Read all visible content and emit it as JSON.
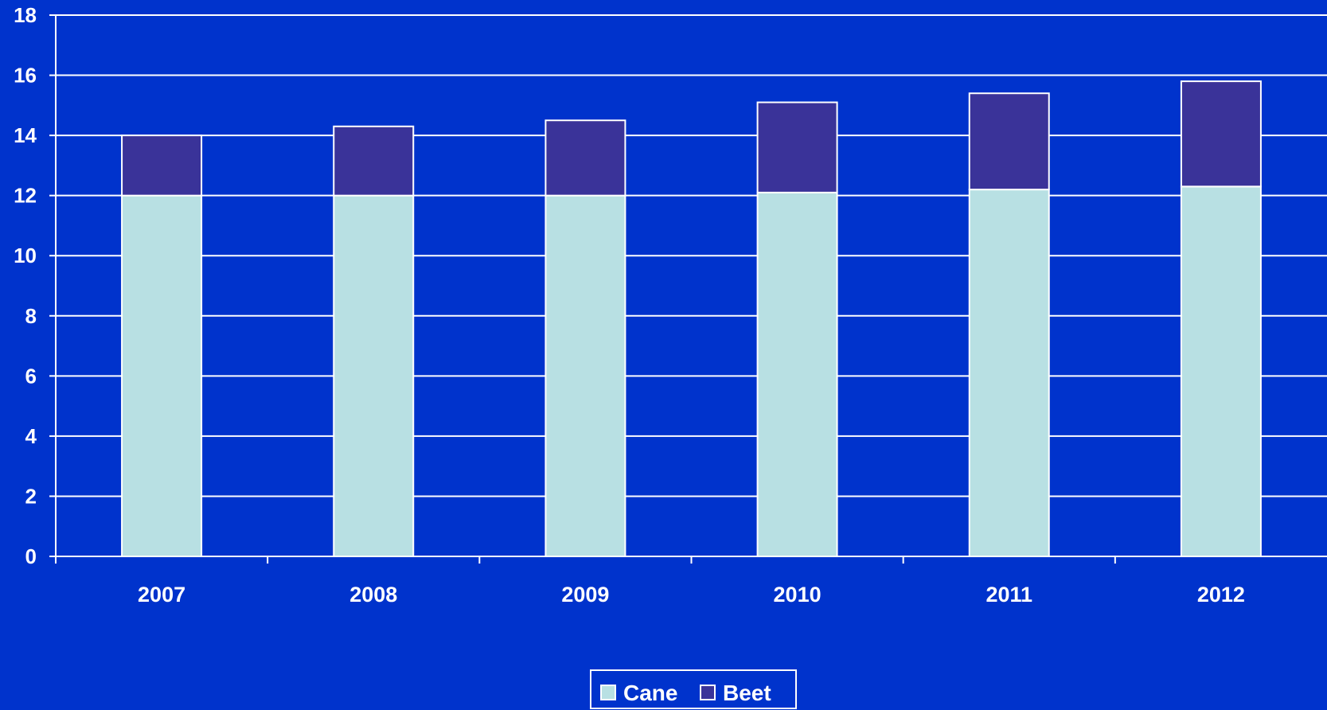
{
  "chart_data": {
    "type": "bar",
    "stacked": true,
    "title": "",
    "xlabel": "",
    "ylabel": "",
    "categories": [
      "2007",
      "2008",
      "2009",
      "2010",
      "2011",
      "2012"
    ],
    "series": [
      {
        "name": "Cane",
        "values": [
          12.0,
          12.0,
          12.0,
          12.1,
          12.2,
          12.3
        ],
        "color": "#B8E0E3"
      },
      {
        "name": "Beet",
        "values": [
          2.0,
          2.3,
          2.5,
          3.0,
          3.2,
          3.5
        ],
        "color": "#3A3399"
      }
    ],
    "ylim": [
      0,
      18
    ],
    "yticks": [
      "0",
      "2",
      "4",
      "6",
      "8",
      "10",
      "12",
      "14",
      "16",
      "18"
    ],
    "grid": true,
    "legend_position": "bottom-center",
    "colors": {
      "background": "#0033CC",
      "axis": "#FFFFFF",
      "gridline": "#FFFFFF",
      "bar_outline": "#FFFFFF"
    }
  }
}
